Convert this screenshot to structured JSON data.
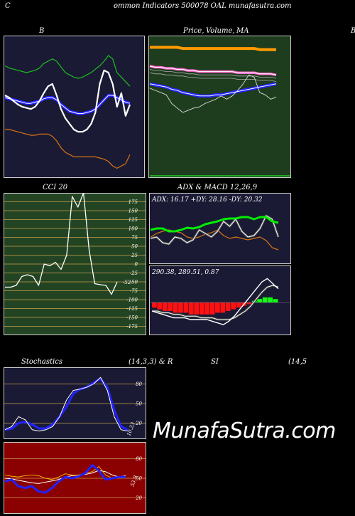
{
  "header": {
    "title": "ommon  Indicators 500078  OAL  munafasutra.com",
    "left_letter": "C"
  },
  "titles": {
    "bollinger": "B",
    "price_ma_1": "Price,",
    "price_ma_2": "Volume,",
    "price_ma_3": "MA",
    "right_cut": "B",
    "cci": "CCI 20",
    "adx_macd": "ADX  & MACD 12,26,9",
    "stoch_1": "Stochastics",
    "stoch_2": "(14,3,3) & R",
    "rsi_1": "SI",
    "rsi_2": "(14,5"
  },
  "watermark": "MunafaSutra.com",
  "colors": {
    "bollinger_bg": "#1a1a35",
    "price_bg": "#1e3d1e",
    "cci_bg": "#234423",
    "adx_bg": "#1a1a35",
    "stoch_bg": "#1a1a35",
    "rsi_bg": "#8b0000",
    "grid_gold": "#c8a14a",
    "band_green": "#1fbf1f",
    "band_orange": "#d97512",
    "ma_blue": "#2222ff",
    "ma_orange": "#ff9a00",
    "ma_pink": "#ff66cc"
  },
  "chart_data": [
    {
      "type": "line",
      "panel": "bollinger",
      "title": "B",
      "series": [
        {
          "values": [
            60,
            58,
            55,
            52,
            50,
            49,
            48,
            50,
            55,
            62,
            68,
            70,
            60,
            48,
            40,
            35,
            30,
            28,
            28,
            30,
            35,
            45,
            70,
            82,
            80,
            70,
            50,
            62,
            42,
            52
          ]
        },
        {
          "values": [
            86,
            84,
            83,
            82,
            81,
            80,
            81,
            82,
            84,
            88,
            90,
            92,
            90,
            85,
            80,
            78,
            76,
            75,
            76,
            78,
            80,
            83,
            86,
            90,
            95,
            92,
            80,
            76,
            72,
            68
          ]
        },
        {
          "values": [
            58,
            57,
            56,
            55,
            54,
            53,
            53,
            54,
            55,
            57,
            58,
            58,
            56,
            52,
            49,
            46,
            45,
            44,
            44,
            45,
            46,
            48,
            52,
            56,
            60,
            60,
            58,
            56,
            54,
            53
          ]
        },
        {
          "values": [
            30,
            30,
            29,
            28,
            27,
            26,
            25,
            25,
            26,
            26,
            26,
            24,
            20,
            14,
            10,
            8,
            6,
            6,
            6,
            6,
            6,
            6,
            5,
            4,
            2,
            -2,
            -4,
            -2,
            0,
            8
          ]
        }
      ]
    },
    {
      "type": "line",
      "panel": "price_volume_ma",
      "title": "Price, Volume, MA",
      "series": [
        {
          "values": [
            62,
            60,
            58,
            56,
            48,
            44,
            40,
            42,
            44,
            45,
            48,
            50,
            52,
            55,
            52,
            55,
            60,
            66,
            74,
            72,
            58,
            56,
            52,
            54
          ]
        },
        {
          "values": [
            66,
            65,
            64,
            63,
            61,
            60,
            58,
            57,
            56,
            55,
            55,
            55,
            56,
            56,
            57,
            58,
            59,
            60,
            61,
            62,
            63,
            64,
            65,
            66
          ]
        },
        {
          "values": [
            82,
            81,
            81,
            80,
            80,
            79,
            79,
            78,
            78,
            77,
            77,
            77,
            77,
            77,
            77,
            77,
            76,
            76,
            76,
            76,
            75,
            75,
            75,
            74
          ]
        },
        {
          "values": [
            99,
            99,
            99,
            99,
            99,
            99,
            98,
            98,
            98,
            98,
            98,
            98,
            98,
            98,
            98,
            98,
            98,
            98,
            98,
            98,
            97,
            97,
            97,
            97
          ]
        }
      ]
    },
    {
      "type": "line",
      "panel": "cci",
      "title": "CCI 20",
      "ylim": [
        -175,
        175
      ],
      "yticks": [
        175,
        150,
        125,
        100,
        75,
        50,
        25,
        0,
        -25,
        -50,
        -75,
        -100,
        -125,
        -150,
        -175
      ],
      "series": [
        {
          "values": [
            -65,
            -65,
            -60,
            -35,
            -30,
            -35,
            -60,
            0,
            -5,
            5,
            -15,
            25,
            190,
            160,
            200,
            40,
            -55,
            -58,
            -60,
            -85,
            -50
          ]
        }
      ],
      "last_label": "-52"
    },
    {
      "type": "line",
      "panel": "adx",
      "title": "ADX  & MACD 12,26,9",
      "text": "ADX: 16.17  +DY: 28.16  -DY: 20.32",
      "ylim": [
        0,
        100
      ],
      "series": [
        {
          "values": [
            28,
            30,
            22,
            20,
            30,
            28,
            22,
            26,
            40,
            35,
            30,
            38,
            52,
            45,
            55,
            38,
            30,
            32,
            42,
            60,
            55,
            30
          ]
        },
        {
          "values": [
            40,
            42,
            42,
            38,
            38,
            40,
            43,
            42,
            44,
            48,
            50,
            52,
            55,
            56,
            56,
            58,
            58,
            55,
            58,
            58,
            52,
            50
          ]
        },
        {
          "values": [
            30,
            35,
            38,
            40,
            38,
            36,
            30,
            28,
            30,
            34,
            36,
            40,
            32,
            28,
            30,
            28,
            26,
            28,
            30,
            25,
            15,
            12
          ]
        }
      ]
    },
    {
      "type": "bar",
      "panel": "macd",
      "text": "290.38,  289.51,  0.87",
      "histogram": [
        -3,
        -4,
        -5,
        -5,
        -6,
        -6,
        -6,
        -7,
        -7,
        -7,
        -7,
        -7,
        -6,
        -6,
        -5,
        -4,
        -3,
        -2,
        -1,
        1,
        2,
        3,
        3,
        2
      ],
      "series": [
        {
          "values": [
            -5,
            -6,
            -7,
            -8,
            -9,
            -9,
            -9,
            -10,
            -10,
            -10,
            -10,
            -11,
            -12,
            -13,
            -11,
            -8,
            -4,
            0,
            4,
            8,
            12,
            14,
            11,
            8
          ]
        },
        {
          "values": [
            -5,
            -5,
            -6,
            -6,
            -7,
            -7,
            -8,
            -8,
            -8,
            -9,
            -9,
            -9,
            -10,
            -10,
            -10,
            -9,
            -7,
            -5,
            -2,
            2,
            6,
            9,
            10,
            9
          ]
        }
      ]
    },
    {
      "type": "line",
      "panel": "stochastics",
      "title": "Stochastics (14,3,3) & R",
      "ylim": [
        0,
        100
      ],
      "yticks": [
        80,
        50,
        20
      ],
      "last_label": "10.23",
      "series": [
        {
          "values": [
            10,
            15,
            30,
            25,
            10,
            8,
            10,
            15,
            30,
            55,
            70,
            72,
            75,
            80,
            90,
            70,
            30,
            10,
            8
          ]
        },
        {
          "values": [
            10,
            12,
            20,
            22,
            18,
            12,
            12,
            18,
            30,
            45,
            65,
            72,
            75,
            82,
            88,
            75,
            40,
            15,
            10
          ]
        }
      ]
    },
    {
      "type": "line",
      "panel": "rsi",
      "title": "SI (14,5",
      "ylim": [
        0,
        100
      ],
      "yticks": [
        80,
        50,
        20
      ],
      "last_label": "53.9",
      "series": [
        {
          "values": [
            55,
            53,
            52,
            54,
            55,
            54,
            50,
            48,
            52,
            57,
            55,
            55,
            58,
            60,
            68,
            55,
            50,
            52,
            53
          ]
        },
        {
          "values": [
            50,
            49,
            47,
            45,
            43,
            42,
            44,
            46,
            48,
            52,
            54,
            55,
            56,
            58,
            62,
            60,
            55,
            52,
            54
          ]
        },
        {
          "values": [
            45,
            48,
            38,
            35,
            38,
            30,
            28,
            35,
            45,
            52,
            50,
            53,
            58,
            70,
            62,
            48,
            50,
            52,
            52
          ]
        }
      ]
    }
  ]
}
